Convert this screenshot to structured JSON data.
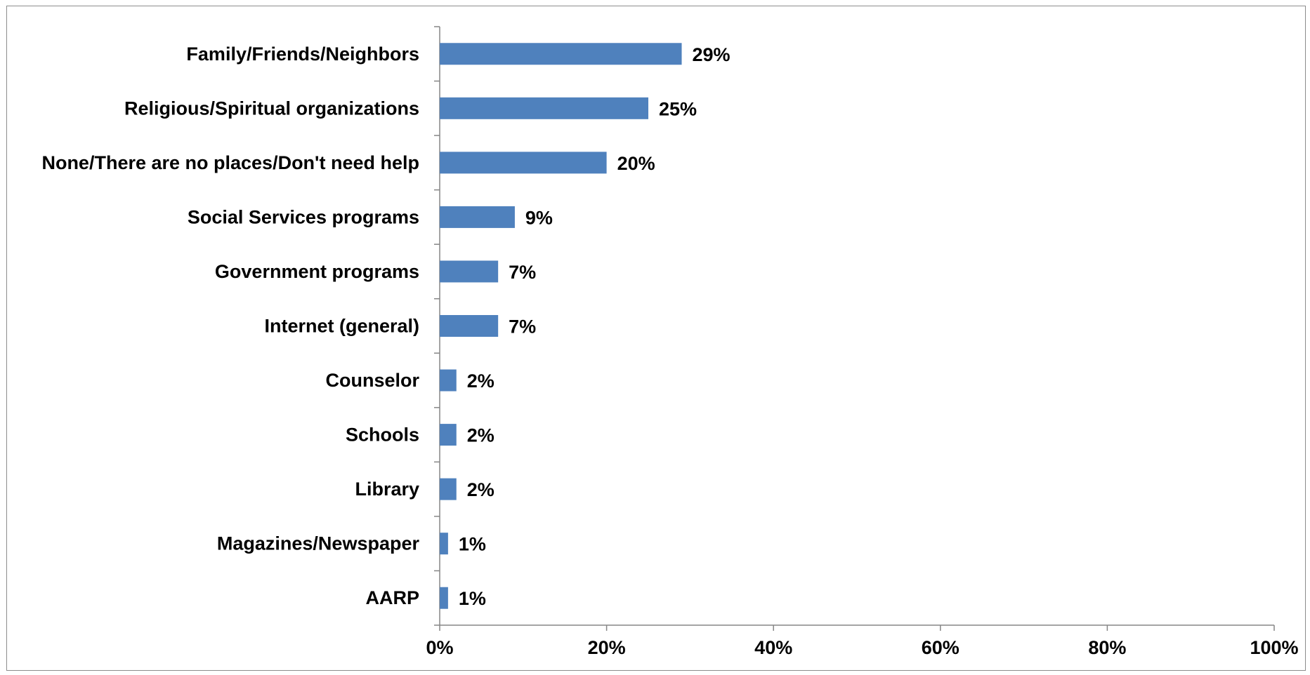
{
  "chart_data": {
    "type": "bar",
    "orientation": "horizontal",
    "categories": [
      "Family/Friends/Neighbors",
      "Religious/Spiritual organizations",
      "None/There are no places/Don't need help",
      "Social Services programs",
      "Government programs",
      "Internet (general)",
      "Counselor",
      "Schools",
      "Library",
      "Magazines/Newspaper",
      "AARP"
    ],
    "values": [
      29,
      25,
      20,
      9,
      7,
      7,
      2,
      2,
      2,
      1,
      1
    ],
    "value_labels": [
      "29%",
      "25%",
      "20%",
      "9%",
      "7%",
      "7%",
      "2%",
      "2%",
      "2%",
      "1%",
      "1%"
    ],
    "title": "",
    "xlabel": "",
    "ylabel": "",
    "xlim": [
      0,
      100
    ],
    "x_ticks": [
      0,
      20,
      40,
      60,
      80,
      100
    ],
    "x_tick_labels": [
      "0%",
      "20%",
      "40%",
      "60%",
      "80%",
      "100%"
    ],
    "grid": false,
    "legend": "none",
    "colors": {
      "bar": "#4F81BD",
      "axis": "#868686",
      "frame": "#8c8c8c",
      "text": "#000000"
    }
  }
}
